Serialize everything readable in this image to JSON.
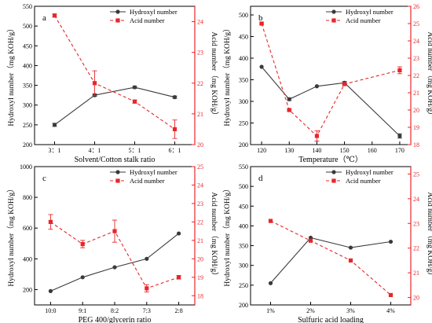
{
  "chart_data": [
    {
      "type": "line",
      "panel": "a",
      "xlabel": "Solvent/Cotton stalk ratio",
      "categories": [
        "3：1",
        "4：1",
        "5：1",
        "6：1"
      ],
      "ylabel": "Hydroxyl number（mg KOH/g）",
      "y2label": "Acid number（mg KOH/g）",
      "ylim": [
        200,
        550
      ],
      "yticks": [
        200,
        250,
        300,
        350,
        400,
        450,
        500,
        550
      ],
      "y2lim": [
        20,
        24.5
      ],
      "y2ticks": [
        20,
        21,
        22,
        23,
        24
      ],
      "legend": "top-right",
      "series": [
        {
          "name": "Hydroxyl number",
          "axis": "left",
          "color": "#3a3a3a",
          "style": "solid",
          "marker": "circle",
          "values": [
            250,
            325,
            345,
            320
          ],
          "errors": [
            4,
            3,
            3,
            3
          ]
        },
        {
          "name": "Acid number",
          "axis": "right",
          "color": "#e8262a",
          "style": "dashed",
          "marker": "square",
          "values": [
            24.2,
            22,
            21.4,
            20.5
          ],
          "errors": [
            0.05,
            0.4,
            0.05,
            0.3
          ]
        }
      ]
    },
    {
      "type": "line",
      "panel": "b",
      "xlabel": "Temperature（℃）",
      "x": [
        120,
        130,
        140,
        150,
        170
      ],
      "xticks": [
        120,
        130,
        140,
        150,
        160,
        170
      ],
      "xlim": [
        116,
        174
      ],
      "ylabel": "Hydroxyl number（mg KOH/g）",
      "y2label": "Acid number（mg KOH/g）",
      "ylim": [
        200,
        520
      ],
      "yticks": [
        200,
        250,
        300,
        350,
        400,
        450,
        500
      ],
      "y2lim": [
        18,
        26
      ],
      "y2ticks": [
        18,
        19,
        20,
        21,
        22,
        23,
        24,
        25,
        26
      ],
      "legend": "top-right",
      "series": [
        {
          "name": "Hydroxyl number",
          "axis": "left",
          "color": "#3a3a3a",
          "style": "solid",
          "marker": "circle",
          "values": [
            380,
            305,
            335,
            343,
            220
          ],
          "errors": [
            0,
            3,
            0,
            3,
            5
          ]
        },
        {
          "name": "Acid number",
          "axis": "right",
          "color": "#e8262a",
          "style": "dashed",
          "marker": "square",
          "values": [
            25,
            20,
            18.5,
            21.5,
            22.3
          ],
          "errors": [
            0.05,
            0.05,
            0.3,
            0.05,
            0.2
          ]
        }
      ]
    },
    {
      "type": "line",
      "panel": "c",
      "xlabel": "PEG 400/glycerin ratio",
      "categories": [
        "10:0",
        "9:1",
        "8:2",
        "7:3",
        "2:8"
      ],
      "ylabel": "Hydroxyl number（mg KOH/g）",
      "y2label": "Acid number（mg KOH/g）",
      "ylim": [
        100,
        1000
      ],
      "yticks": [
        200,
        400,
        600,
        800,
        1000
      ],
      "y2lim": [
        17.5,
        25
      ],
      "y2ticks": [
        18,
        19,
        20,
        21,
        22,
        23,
        24,
        25
      ],
      "legend": "top-right",
      "series": [
        {
          "name": "Hydroxyl number",
          "axis": "left",
          "color": "#3a3a3a",
          "style": "solid",
          "marker": "circle",
          "values": [
            190,
            280,
            345,
            400,
            565
          ],
          "errors": [
            0,
            0,
            0,
            0,
            0
          ]
        },
        {
          "name": "Acid number",
          "axis": "right",
          "color": "#e8262a",
          "style": "dashed",
          "marker": "square",
          "values": [
            22,
            20.8,
            21.5,
            18.4,
            19
          ],
          "errors": [
            0.4,
            0.2,
            0.6,
            0.2,
            0.1
          ]
        }
      ]
    },
    {
      "type": "line",
      "panel": "d",
      "xlabel": "Sulfuric acid loading",
      "categories": [
        "1%",
        "2%",
        "3%",
        "4%"
      ],
      "ylabel": "Hydroxyl number（mg KOH/g）",
      "y2label": "Acid number（mg KOH/g）",
      "ylim": [
        200,
        550
      ],
      "yticks": [
        200,
        250,
        300,
        350,
        400,
        450,
        500,
        550
      ],
      "y2lim": [
        19.7,
        25.3
      ],
      "y2ticks": [
        20,
        21,
        22,
        23,
        24,
        25
      ],
      "legend": "top-right",
      "series": [
        {
          "name": "Hydroxyl number",
          "axis": "left",
          "color": "#3a3a3a",
          "style": "solid",
          "marker": "circle",
          "values": [
            255,
            370,
            345,
            360
          ],
          "errors": [
            0,
            0,
            0,
            0
          ]
        },
        {
          "name": "Acid number",
          "axis": "right",
          "color": "#e8262a",
          "style": "dashed",
          "marker": "square",
          "values": [
            23.1,
            22.3,
            21.5,
            20.1
          ],
          "errors": [
            0,
            0,
            0,
            0
          ]
        }
      ]
    }
  ]
}
